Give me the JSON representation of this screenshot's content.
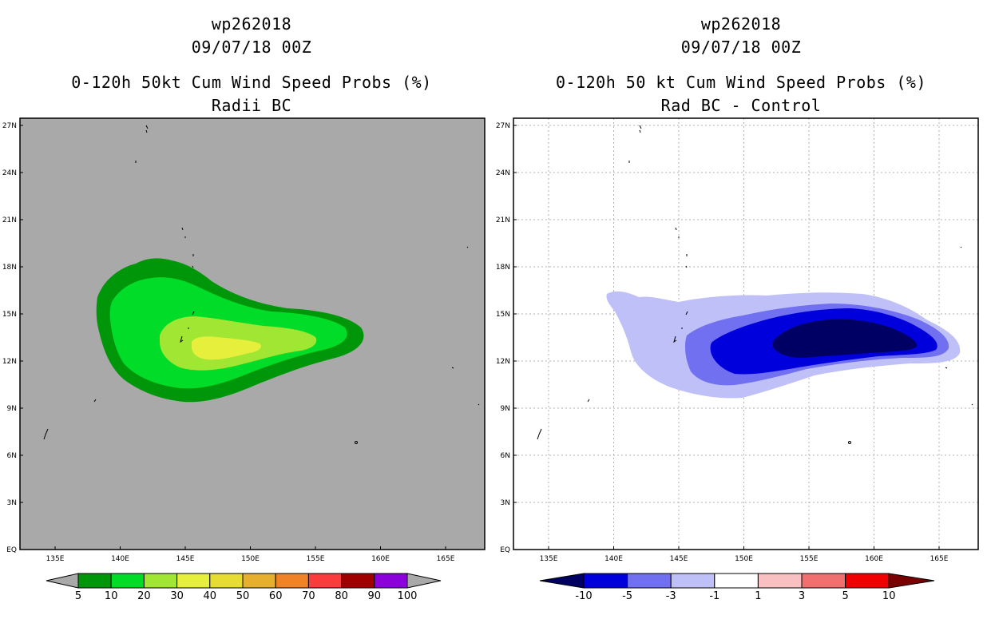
{
  "left_panel": {
    "storm_id": "wp262018",
    "datetime": "09/07/18 00Z",
    "title": "0-120h 50kt Cum Wind Speed Probs (%)",
    "subtitle": "Radii BC",
    "colorbar_labels": [
      "5",
      "10",
      "20",
      "30",
      "40",
      "50",
      "60",
      "70",
      "80",
      "90",
      "100"
    ],
    "colorbar_colors": [
      "#00960a",
      "#00dc28",
      "#a0e632",
      "#e6f03c",
      "#e6dc32",
      "#e6af2d",
      "#f08228",
      "#fa3c3c",
      "#a00000",
      "#8c00dc"
    ],
    "background_color": "#a9a9a9"
  },
  "right_panel": {
    "storm_id": "wp262018",
    "datetime": "09/07/18 00Z",
    "title": "0-120h 50 kt Cum Wind Speed Probs (%)",
    "subtitle": "Rad BC - Control",
    "colorbar_labels": [
      "-10",
      "-5",
      "-3",
      "-1",
      "1",
      "3",
      "5",
      "10"
    ],
    "colorbar_colors": [
      "#0000dc",
      "#7070f0",
      "#c0c0f8",
      "#ffffff",
      "#f8c0c0",
      "#f07070",
      "#f00000"
    ],
    "end_colors": [
      "#000064",
      "#780000"
    ]
  },
  "axes": {
    "lat_labels": [
      "27N",
      "24N",
      "21N",
      "18N",
      "15N",
      "12N",
      "9N",
      "6N",
      "3N",
      "EQ"
    ],
    "lon_labels": [
      "135E",
      "140E",
      "145E",
      "150E",
      "155E",
      "160E",
      "165E"
    ]
  }
}
